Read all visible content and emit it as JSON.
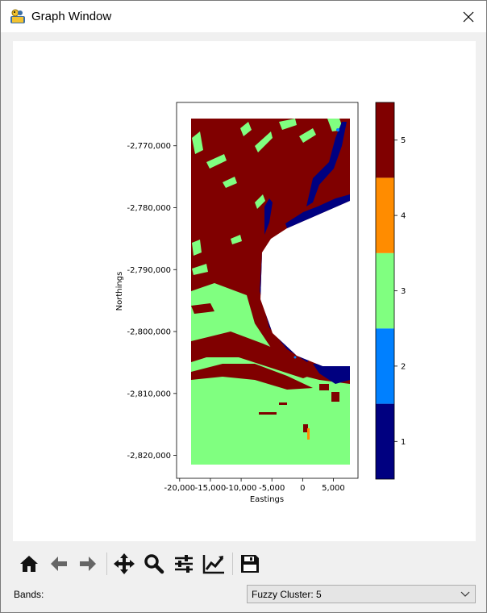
{
  "window": {
    "title": "Graph Window",
    "app_icon": "python-snake-icon",
    "close_icon": "close-icon"
  },
  "toolbar": {
    "icons": [
      "home-icon",
      "back-arrow-icon",
      "forward-arrow-icon",
      "pan-icon",
      "zoom-icon",
      "configure-subplots-icon",
      "edit-axis-icon",
      "save-icon"
    ]
  },
  "bands": {
    "label": "Bands:",
    "selected": "Fuzzy Cluster: 5"
  },
  "chart_data": {
    "type": "heatmap",
    "xlabel": "Eastings",
    "ylabel": "Northings",
    "x_ticks": [
      -20000,
      -15000,
      -10000,
      -5000,
      0,
      5000
    ],
    "x_tick_labels": [
      "-20,000",
      "-15,000",
      "-10,000",
      "-5,000",
      "0",
      "5,000"
    ],
    "y_ticks": [
      -2770000,
      -2780000,
      -2790000,
      -2800000,
      -2810000,
      -2820000
    ],
    "y_tick_labels": [
      "-2,770,000",
      "-2,780,000",
      "-2,790,000",
      "-2,800,000",
      "-2,810,000",
      "-2,820,000"
    ],
    "xlim": [
      -20500,
      9000
    ],
    "ylim": [
      -2823700,
      -2763000
    ],
    "colorbar": {
      "classes": [
        1,
        2,
        3,
        4,
        5
      ],
      "labels": [
        "1",
        "2",
        "3",
        "4",
        "5"
      ],
      "colors": [
        "#000080",
        "#0080ff",
        "#80ff80",
        "#ff8c00",
        "#800000"
      ]
    }
  }
}
